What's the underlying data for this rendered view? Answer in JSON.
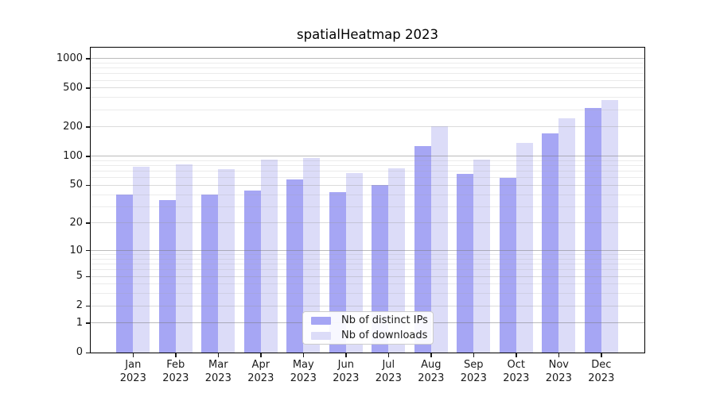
{
  "title": "spatialHeatmap 2023",
  "chart_data": {
    "type": "bar",
    "title": "spatialHeatmap 2023",
    "categories": [
      "Jan 2023",
      "Feb 2023",
      "Mar 2023",
      "Apr 2023",
      "May 2023",
      "Jun 2023",
      "Jul 2023",
      "Aug 2023",
      "Sep 2023",
      "Oct 2023",
      "Nov 2023",
      "Dec 2023"
    ],
    "series": [
      {
        "name": "Nb of distinct IPs",
        "color": "#a6a6f4",
        "values": [
          40,
          35,
          40,
          44,
          57,
          42,
          50,
          128,
          66,
          60,
          170,
          310
        ]
      },
      {
        "name": "Nb of downloads",
        "color": "#dcdcf8",
        "values": [
          78,
          82,
          74,
          93,
          95,
          67,
          75,
          205,
          93,
          138,
          243,
          380
        ]
      }
    ],
    "xlabel": "",
    "ylabel": "",
    "yscale": "log1p",
    "ylim": [
      0,
      1300
    ],
    "y_tick_values": [
      0,
      1,
      2,
      5,
      10,
      20,
      50,
      100,
      200,
      500,
      1000
    ],
    "y_tick_labels": [
      "0",
      "1",
      "2",
      "5",
      "10",
      "20",
      "50",
      "100",
      "200",
      "500",
      "1000"
    ],
    "y_major_gridlines": [
      1,
      10,
      100,
      1000
    ],
    "y_sub_gridlines": [
      2,
      5,
      20,
      50,
      200,
      500
    ],
    "y_minor_gridlines": [
      3,
      4,
      6,
      7,
      8,
      9,
      30,
      40,
      60,
      70,
      80,
      90,
      300,
      400,
      600,
      700,
      800,
      900
    ],
    "grid": true,
    "legend_position": "lower center"
  },
  "legend": {
    "items": [
      {
        "label": "Nb of distinct IPs",
        "color": "#a6a6f4"
      },
      {
        "label": "Nb of downloads",
        "color": "#dcdcf8"
      }
    ]
  },
  "colors": {
    "bar_distinct_ips": "#a6a6f4",
    "bar_downloads": "#dcdcf8",
    "axis": "#000000",
    "text": "#1a1a1a",
    "legend_border": "#cccccc"
  }
}
